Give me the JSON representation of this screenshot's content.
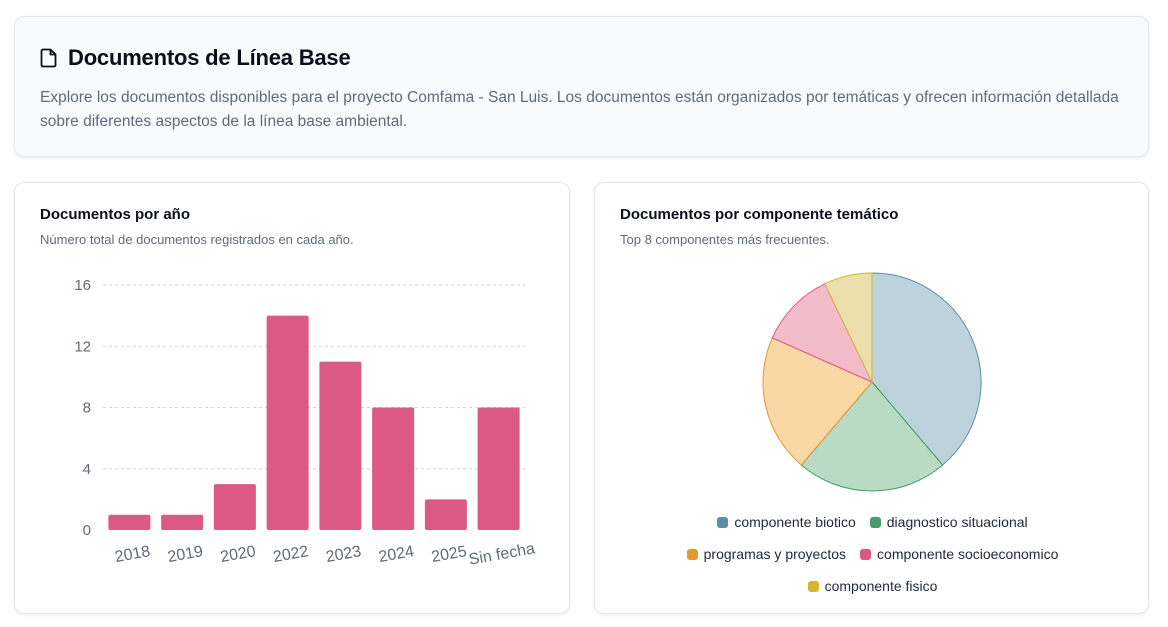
{
  "header": {
    "title": "Documentos de Línea Base",
    "icon": "document-icon",
    "description": "Explore los documentos disponibles para el proyecto Comfama - San Luis. Los documentos están organizados por temáticas y ofrecen información detallada sobre diferentes aspectos de la línea base ambiental."
  },
  "bar_panel": {
    "title": "Documentos por año",
    "subtitle": "Número total de documentos registrados en cada año."
  },
  "pie_panel": {
    "title": "Documentos por componente temático",
    "subtitle": "Top 8 componentes más frecuentes."
  },
  "chart_data": [
    {
      "type": "bar",
      "title": "Documentos por año",
      "categories": [
        "2018",
        "2019",
        "2020",
        "2022",
        "2023",
        "2024",
        "2025",
        "Sin fecha"
      ],
      "values": [
        1,
        1,
        3,
        14,
        11,
        8,
        2,
        8
      ],
      "ylim": [
        0,
        16
      ],
      "yticks": [
        0,
        4,
        8,
        12,
        16
      ],
      "grid": true,
      "bar_color": "#db5984"
    },
    {
      "type": "pie",
      "title": "Documentos por componente temático",
      "series": [
        {
          "name": "componente biotico",
          "value": 38,
          "fill": "#bcd3dc",
          "stroke": "#5b8ea6",
          "swatch": "#5b8ea6"
        },
        {
          "name": "diagnostico situacional",
          "value": 22,
          "fill": "#b9dbc4",
          "stroke": "#4a9a6c",
          "swatch": "#4a9a6c"
        },
        {
          "name": "programas y proyectos",
          "value": 20,
          "fill": "#fad8a6",
          "stroke": "#e8962e",
          "swatch": "#e8962e"
        },
        {
          "name": "componente socioeconomico",
          "value": 11,
          "fill": "#f2bccb",
          "stroke": "#db5984",
          "swatch": "#db5984"
        },
        {
          "name": "componente fisico",
          "value": 7,
          "fill": "#ebe0ad",
          "stroke": "#d6b430",
          "swatch": "#d6b430"
        }
      ],
      "legend_position": "bottom"
    }
  ]
}
